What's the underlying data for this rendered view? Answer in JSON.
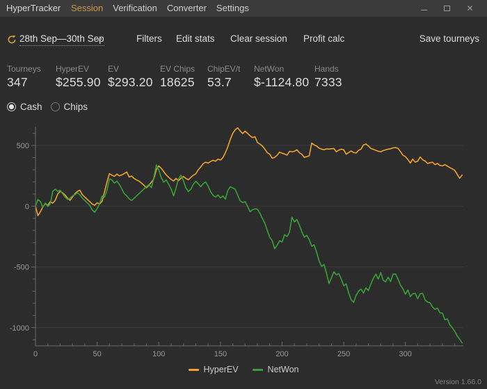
{
  "window": {
    "title": "HyperTracker"
  },
  "menu": {
    "items": [
      {
        "label": "Session",
        "active": true
      },
      {
        "label": "Verification",
        "active": false
      },
      {
        "label": "Converter",
        "active": false
      },
      {
        "label": "Settings",
        "active": false
      }
    ]
  },
  "toolbar": {
    "refresh_icon": "refresh-circular-arrow",
    "date_range": "28th Sep—30th Sep",
    "filters_label": "Filters",
    "edit_stats_label": "Edit stats",
    "clear_session_label": "Clear session",
    "profit_calc_label": "Profit calc",
    "save_tourneys_label": "Save tourneys"
  },
  "stats": [
    {
      "label": "Tourneys",
      "value": "347"
    },
    {
      "label": "HyperEV",
      "value": "$255.90"
    },
    {
      "label": "EV",
      "value": "$293.20"
    },
    {
      "label": "EV Chips",
      "value": "18625"
    },
    {
      "label": "ChipEV/t",
      "value": "53.7"
    },
    {
      "label": "NetWon",
      "value": "$-1124.80"
    },
    {
      "label": "Hands",
      "value": "7333"
    }
  ],
  "view_toggle": {
    "options": [
      {
        "label": "Cash",
        "selected": true
      },
      {
        "label": "Chips",
        "selected": false
      }
    ]
  },
  "chart_data": {
    "type": "line",
    "title": "",
    "xlabel": "",
    "ylabel": "",
    "x_axis": "tournament number",
    "y_axis": "cumulative dollars",
    "xlim": [
      0,
      347
    ],
    "ylim": [
      -1150,
      655
    ],
    "x_label_ticks": [
      0,
      50,
      100,
      150,
      200,
      250,
      300
    ],
    "x_minor_tick_step": 10,
    "y_ticks": [
      500,
      0,
      -500,
      -1000
    ],
    "y_minor_tick_step": 100,
    "grid": true,
    "grid_color": "#3d3d3d",
    "axis_color": "#6a6a6a",
    "tick_label_color": "#9a9a9a",
    "legend_position": "bottom-center",
    "x_start": 0,
    "x_step": 2,
    "series": [
      {
        "name": "HyperEV",
        "color": "#f0a22b",
        "final_value": 255.9,
        "values": [
          0,
          -78,
          -45,
          -5,
          20,
          8,
          38,
          25,
          48,
          100,
          122,
          110,
          92,
          66,
          48,
          75,
          103,
          122,
          131,
          95,
          75,
          56,
          38,
          18,
          8,
          28,
          18,
          40,
          120,
          200,
          268,
          255,
          246,
          264,
          250,
          258,
          268,
          282,
          240,
          248,
          228,
          216,
          207,
          190,
          172,
          152,
          172,
          198,
          225,
          300,
          332,
          312,
          285,
          258,
          238,
          220,
          208,
          228,
          210,
          230,
          245,
          228,
          218,
          237,
          255,
          266,
          300,
          322,
          350,
          362,
          355,
          368,
          378,
          370,
          388,
          380,
          400,
          440,
          490,
          550,
          600,
          630,
          645,
          620,
          598,
          618,
          600,
          580,
          565,
          572,
          525,
          512,
          495,
          470,
          440,
          428,
          395,
          402,
          420,
          445,
          436,
          430,
          420,
          452,
          448,
          452,
          465,
          440,
          428,
          402,
          408,
          415,
          520,
          505,
          495,
          478,
          470,
          465,
          472,
          470,
          473,
          475,
          448,
          462,
          470,
          464,
          428,
          442,
          455,
          442,
          438,
          460,
          470,
          505,
          512,
          496,
          475,
          468,
          460,
          452,
          448,
          458,
          464,
          470,
          473,
          480,
          483,
          476,
          450,
          420,
          408,
          385,
          355,
          388,
          362,
          372,
          405,
          382,
          372,
          352,
          358,
          362,
          342,
          352,
          336,
          332,
          342,
          330,
          318,
          308,
          295,
          262,
          230,
          255.9
        ]
      },
      {
        "name": "NetWon",
        "color": "#37a237",
        "final_value": -1124.8,
        "values": [
          0,
          55,
          38,
          -8,
          26,
          -2,
          20,
          122,
          140,
          122,
          131,
          103,
          75,
          56,
          66,
          85,
          94,
          112,
          94,
          66,
          47,
          28,
          8,
          -30,
          -50,
          -20,
          20,
          84,
          75,
          130,
          225,
          216,
          190,
          207,
          180,
          142,
          104,
          85,
          60,
          47,
          66,
          85,
          104,
          123,
          142,
          160,
          178,
          152,
          235,
          340,
          300,
          235,
          198,
          216,
          180,
          142,
          85,
          150,
          225,
          255,
          210,
          150,
          120,
          140,
          180,
          205,
          185,
          160,
          185,
          200,
          165,
          120,
          90,
          75,
          92,
          68,
          84,
          58,
          130,
          160,
          150,
          140,
          90,
          45,
          30,
          38,
          0,
          -45,
          -30,
          -22,
          -25,
          -58,
          -100,
          -140,
          -200,
          -255,
          -285,
          -350,
          -320,
          -285,
          -295,
          -235,
          -250,
          -215,
          -90,
          -130,
          -110,
          -155,
          -210,
          -255,
          -240,
          -275,
          -330,
          -318,
          -380,
          -450,
          -495,
          -480,
          -552,
          -638,
          -590,
          -540,
          -565,
          -555,
          -600,
          -655,
          -640,
          -715,
          -770,
          -792,
          -735,
          -700,
          -682,
          -715,
          -672,
          -695,
          -640,
          -595,
          -560,
          -600,
          -548,
          -610,
          -622,
          -585,
          -620,
          -560,
          -558,
          -600,
          -650,
          -680,
          -725,
          -690,
          -745,
          -720,
          -718,
          -762,
          -720,
          -718,
          -772,
          -790,
          -795,
          -830,
          -850,
          -840,
          -878,
          -880,
          -935,
          -928,
          -975,
          -1000,
          -1030,
          -1068,
          -1095,
          -1124.8
        ]
      }
    ]
  },
  "legend": {
    "items": [
      {
        "label": "HyperEV",
        "color": "#f0a22b"
      },
      {
        "label": "NetWon",
        "color": "#37a237"
      }
    ]
  },
  "footer": {
    "version": "Version 1.66.0"
  },
  "colors": {
    "background": "#2c2c2c",
    "titlebar": "#3b3b3b",
    "accent_gold": "#c99a4e",
    "hyperev_line": "#f0a22b",
    "netwon_line": "#37a237"
  }
}
